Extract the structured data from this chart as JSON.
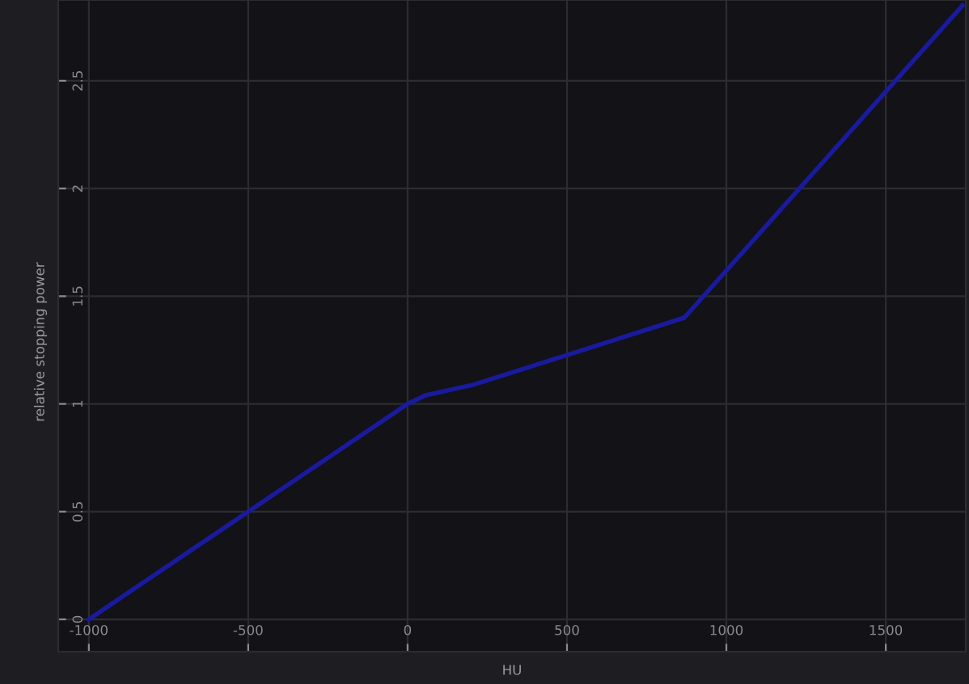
{
  "chart_data": {
    "type": "line",
    "xlabel": "HU",
    "ylabel": "relative stopping power",
    "x": [
      -1000,
      0,
      56,
      208,
      868,
      1741
    ],
    "series": [
      {
        "color": "#1a1a9c",
        "values": [
          0,
          1.0,
          1.04,
          1.09,
          1.4,
          2.85
        ]
      }
    ],
    "xlim": [
      -1096,
      1751
    ],
    "ylim": [
      -0.15,
      2.875
    ],
    "xticks": [
      -1000,
      -500,
      0,
      500,
      1000,
      1500
    ],
    "yticks": [
      0,
      0.5,
      1,
      1.5,
      2,
      2.5
    ],
    "grid": true,
    "marker": "none",
    "line_style": "solid"
  }
}
